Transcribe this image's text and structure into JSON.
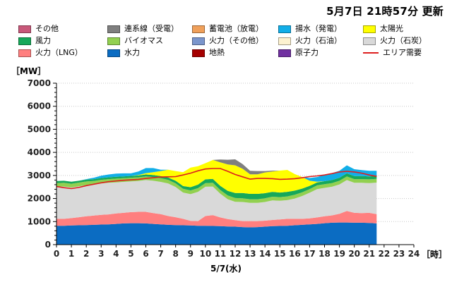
{
  "header": {
    "updated": "5月7日  21時57分  更新"
  },
  "chart_data": {
    "type": "area",
    "stacked": true,
    "ylabel": "［MW］",
    "xunit": "［時］",
    "xlabel": "5/7(水)",
    "ylim": [
      0,
      7000
    ],
    "xlim": [
      0,
      24
    ],
    "y_ticks": [
      0,
      1000,
      2000,
      3000,
      4000,
      5000,
      6000,
      7000
    ],
    "x_ticks": [
      0,
      1,
      2,
      3,
      4,
      5,
      6,
      7,
      8,
      9,
      10,
      11,
      12,
      13,
      14,
      15,
      16,
      17,
      18,
      19,
      20,
      21,
      22,
      23,
      24
    ],
    "grid": "horizontal dotted",
    "legend": [
      {
        "name": "その他",
        "color": "#c8587a",
        "kind": "area"
      },
      {
        "name": "連系線（受電）",
        "color": "#7f7f7f",
        "kind": "area"
      },
      {
        "name": "蓄電池（放電）",
        "color": "#f0a05a",
        "kind": "area"
      },
      {
        "name": "揚水（発電）",
        "color": "#12aee8",
        "kind": "area"
      },
      {
        "name": "太陽光",
        "color": "#ffff00",
        "kind": "area"
      },
      {
        "name": "風力",
        "color": "#16a85a",
        "kind": "area"
      },
      {
        "name": "バイオマス",
        "color": "#92d050",
        "kind": "area"
      },
      {
        "name": "火力（その他）",
        "color": "#7b96cc",
        "kind": "area"
      },
      {
        "name": "火力（石油）",
        "color": "#fdf2d0",
        "kind": "area"
      },
      {
        "name": "火力（石炭）",
        "color": "#d9d9d9",
        "kind": "area"
      },
      {
        "name": "火力（LNG）",
        "color": "#ff7f7f",
        "kind": "area"
      },
      {
        "name": "水力",
        "color": "#0b6cc2",
        "kind": "area"
      },
      {
        "name": "地熱",
        "color": "#a50000",
        "kind": "area"
      },
      {
        "name": "原子力",
        "color": "#7030a0",
        "kind": "area"
      },
      {
        "name": "エリア需要",
        "color": "#dd1e1e",
        "kind": "line"
      }
    ],
    "x": [
      0,
      0.5,
      1,
      1.5,
      2,
      2.5,
      3,
      3.5,
      4,
      4.5,
      5,
      5.5,
      6,
      6.5,
      7,
      7.5,
      8,
      8.5,
      9,
      9.5,
      10,
      10.5,
      11,
      11.5,
      12,
      12.5,
      13,
      13.5,
      14,
      14.5,
      15,
      15.5,
      16,
      16.5,
      17,
      17.5,
      18,
      18.5,
      19,
      19.5,
      20,
      20.5,
      21,
      21.5
    ],
    "series": [
      {
        "name": "水力",
        "values": [
          820,
          820,
          830,
          840,
          850,
          860,
          870,
          880,
          900,
          920,
          930,
          930,
          920,
          900,
          880,
          860,
          850,
          840,
          830,
          820,
          820,
          810,
          800,
          790,
          780,
          760,
          750,
          760,
          780,
          800,
          810,
          820,
          840,
          860,
          880,
          900,
          930,
          950,
          960,
          960,
          950,
          950,
          940,
          920
        ]
      },
      {
        "name": "火力（LNG）",
        "values": [
          300,
          300,
          320,
          350,
          380,
          400,
          420,
          430,
          450,
          460,
          480,
          490,
          500,
          470,
          440,
          380,
          340,
          280,
          200,
          200,
          420,
          470,
          380,
          320,
          280,
          260,
          270,
          260,
          260,
          270,
          280,
          300,
          280,
          260,
          260,
          280,
          300,
          320,
          380,
          500,
          430,
          420,
          440,
          400
        ]
      },
      {
        "name": "火力（石炭）",
        "values": [
          1390,
          1400,
          1330,
          1340,
          1350,
          1340,
          1360,
          1370,
          1350,
          1340,
          1330,
          1340,
          1380,
          1400,
          1400,
          1410,
          1310,
          1140,
          1160,
          1270,
          1270,
          1240,
          1030,
          860,
          800,
          830,
          790,
          790,
          810,
          850,
          810,
          810,
          880,
          990,
          1110,
          1230,
          1230,
          1240,
          1270,
          1340,
          1300,
          1310,
          1290,
          1370
        ]
      },
      {
        "name": "バイオマス",
        "values": [
          160,
          160,
          160,
          160,
          160,
          160,
          160,
          160,
          160,
          160,
          160,
          160,
          160,
          160,
          160,
          160,
          160,
          160,
          160,
          160,
          160,
          160,
          160,
          160,
          160,
          160,
          160,
          160,
          160,
          160,
          160,
          160,
          160,
          160,
          160,
          160,
          160,
          160,
          160,
          160,
          160,
          160,
          160,
          160
        ]
      },
      {
        "name": "風力",
        "values": [
          90,
          90,
          90,
          80,
          80,
          80,
          80,
          80,
          80,
          80,
          80,
          80,
          80,
          90,
          90,
          100,
          110,
          120,
          140,
          150,
          160,
          170,
          180,
          200,
          220,
          230,
          230,
          230,
          220,
          210,
          200,
          200,
          180,
          160,
          140,
          130,
          130,
          130,
          130,
          130,
          130,
          130,
          130,
          130
        ]
      },
      {
        "name": "太陽光",
        "values": [
          0,
          0,
          0,
          0,
          0,
          0,
          0,
          0,
          0,
          0,
          0,
          20,
          60,
          120,
          220,
          340,
          420,
          600,
          850,
          800,
          700,
          820,
          1020,
          1150,
          1200,
          1050,
          850,
          850,
          900,
          880,
          950,
          950,
          720,
          500,
          220,
          30,
          0,
          0,
          0,
          0,
          0,
          0,
          0,
          0
        ]
      },
      {
        "name": "揚水（発電）",
        "values": [
          0,
          0,
          0,
          0,
          20,
          60,
          100,
          120,
          140,
          130,
          110,
          150,
          220,
          180,
          60,
          0,
          0,
          0,
          0,
          0,
          0,
          0,
          0,
          0,
          0,
          0,
          0,
          0,
          0,
          0,
          0,
          0,
          0,
          0,
          120,
          200,
          280,
          300,
          300,
          350,
          300,
          260,
          240,
          220
        ]
      },
      {
        "name": "連系線（受電）",
        "values": [
          0,
          0,
          0,
          0,
          0,
          0,
          0,
          0,
          0,
          0,
          0,
          0,
          0,
          0,
          0,
          0,
          0,
          0,
          0,
          0,
          0,
          0,
          120,
          200,
          260,
          200,
          150,
          140,
          60,
          40,
          0,
          0,
          0,
          0,
          0,
          0,
          0,
          0,
          0,
          0,
          0,
          0,
          0,
          0
        ]
      }
    ],
    "demand": {
      "name": "エリア需要",
      "values": [
        2520,
        2470,
        2430,
        2480,
        2560,
        2620,
        2680,
        2730,
        2760,
        2790,
        2810,
        2830,
        2870,
        2900,
        2930,
        2940,
        2950,
        3020,
        3100,
        3200,
        3280,
        3300,
        3300,
        3180,
        3040,
        2940,
        2840,
        2870,
        2870,
        2860,
        2830,
        2840,
        2860,
        2900,
        2950,
        2980,
        3020,
        3080,
        3150,
        3180,
        3150,
        3100,
        3020,
        2960
      ]
    }
  }
}
